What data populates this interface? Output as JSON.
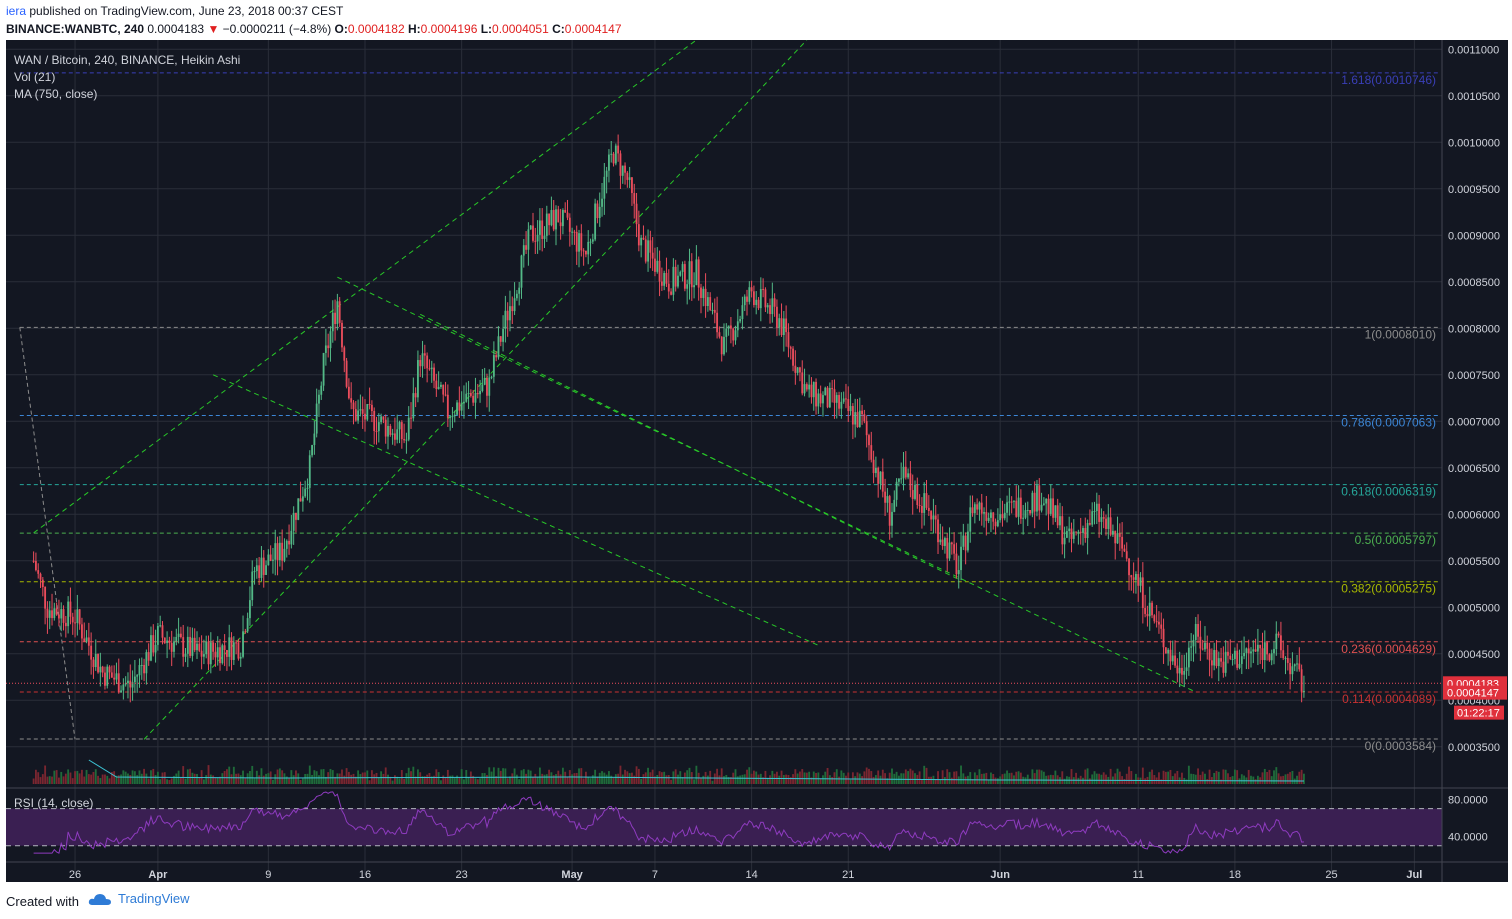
{
  "header": {
    "author": "iera",
    "published": "published on TradingView.com, June 23, 2018 00:37 CEST",
    "symbol_line": {
      "symbol": "BINANCE:WANBTC, 240",
      "last": "0.0004183",
      "change": "−0.0000211 (−4.8%)",
      "open_label": "O:",
      "open": "0.0004182",
      "high_label": "H:",
      "high": "0.0004196",
      "low_label": "L:",
      "low": "0.0004051",
      "close_label": "C:",
      "close": "0.0004147"
    }
  },
  "legend": {
    "title": "WAN / Bitcoin, 240, BINANCE, Heikin Ashi",
    "vol": "Vol (21)",
    "ma": "MA (750, close)",
    "rsi": "RSI (14, close)"
  },
  "colors": {
    "background": "#131722",
    "grid": "#2a2e39",
    "up": "#53b987",
    "down": "#eb4d5c",
    "trend": "#28c828",
    "rsi": "#8e3bbf",
    "rsi_band": "#3a1f52",
    "ma": "#3cc3d4"
  },
  "chart_data": {
    "type": "candlestick",
    "style": "Heikin Ashi",
    "interval": "240",
    "y_range": [
      0.00031,
      0.00111
    ],
    "x_range": [
      "2018-03-21",
      "2018-07-03"
    ],
    "x_tick_labels": [
      "26",
      "Apr",
      "9",
      "16",
      "23",
      "May",
      "7",
      "14",
      "21",
      "Jun",
      "11",
      "18",
      "25",
      "Jul"
    ],
    "x_tick_dates": [
      "2018-03-26",
      "2018-04-01",
      "2018-04-09",
      "2018-04-16",
      "2018-04-23",
      "2018-05-01",
      "2018-05-07",
      "2018-05-14",
      "2018-05-21",
      "2018-06-01",
      "2018-06-11",
      "2018-06-18",
      "2018-06-25",
      "2018-07-01"
    ],
    "y_tick_labels": [
      "0.0011000",
      "0.0010500",
      "0.0010000",
      "0.0009500",
      "0.0009000",
      "0.0008500",
      "0.0008000",
      "0.0007500",
      "0.0007000",
      "0.0006500",
      "0.0006000",
      "0.0005500",
      "0.0005000",
      "0.0004500",
      "0.0004000",
      "0.0003500"
    ],
    "price_path": [
      {
        "date": "2018-03-23",
        "price": 0.00055
      },
      {
        "date": "2018-03-24",
        "price": 0.0005
      },
      {
        "date": "2018-03-26",
        "price": 0.00049
      },
      {
        "date": "2018-03-28",
        "price": 0.00043
      },
      {
        "date": "2018-03-30",
        "price": 0.000415
      },
      {
        "date": "2018-04-01",
        "price": 0.00047
      },
      {
        "date": "2018-04-04",
        "price": 0.00045
      },
      {
        "date": "2018-04-07",
        "price": 0.00046
      },
      {
        "date": "2018-04-08",
        "price": 0.00054
      },
      {
        "date": "2018-04-10",
        "price": 0.00056
      },
      {
        "date": "2018-04-12",
        "price": 0.00065
      },
      {
        "date": "2018-04-13",
        "price": 0.00076
      },
      {
        "date": "2018-04-14",
        "price": 0.00083
      },
      {
        "date": "2018-04-15",
        "price": 0.00071
      },
      {
        "date": "2018-04-17",
        "price": 0.0007
      },
      {
        "date": "2018-04-19",
        "price": 0.00068
      },
      {
        "date": "2018-04-20",
        "price": 0.00077
      },
      {
        "date": "2018-04-22",
        "price": 0.00071
      },
      {
        "date": "2018-04-25",
        "price": 0.00074
      },
      {
        "date": "2018-04-26",
        "price": 0.0008
      },
      {
        "date": "2018-04-28",
        "price": 0.0009
      },
      {
        "date": "2018-04-30",
        "price": 0.00092
      },
      {
        "date": "2018-05-02",
        "price": 0.00088
      },
      {
        "date": "2018-05-03",
        "price": 0.00094
      },
      {
        "date": "2018-05-04",
        "price": 0.00099
      },
      {
        "date": "2018-05-05",
        "price": 0.00096
      },
      {
        "date": "2018-05-06",
        "price": 0.00089
      },
      {
        "date": "2018-05-08",
        "price": 0.00085
      },
      {
        "date": "2018-05-10",
        "price": 0.00086
      },
      {
        "date": "2018-05-12",
        "price": 0.00078
      },
      {
        "date": "2018-05-14",
        "price": 0.00084
      },
      {
        "date": "2018-05-16",
        "price": 0.00081
      },
      {
        "date": "2018-05-18",
        "price": 0.00073
      },
      {
        "date": "2018-05-20",
        "price": 0.00072
      },
      {
        "date": "2018-05-22",
        "price": 0.0007
      },
      {
        "date": "2018-05-24",
        "price": 0.0006
      },
      {
        "date": "2018-05-25",
        "price": 0.00064
      },
      {
        "date": "2018-05-27",
        "price": 0.0006
      },
      {
        "date": "2018-05-29",
        "price": 0.00054
      },
      {
        "date": "2018-05-30",
        "price": 0.00061
      },
      {
        "date": "2018-06-01",
        "price": 0.0006
      },
      {
        "date": "2018-06-04",
        "price": 0.00062
      },
      {
        "date": "2018-06-06",
        "price": 0.00057
      },
      {
        "date": "2018-06-08",
        "price": 0.0006
      },
      {
        "date": "2018-06-10",
        "price": 0.00056
      },
      {
        "date": "2018-06-12",
        "price": 0.00049
      },
      {
        "date": "2018-06-14",
        "price": 0.00043
      },
      {
        "date": "2018-06-15",
        "price": 0.00047
      },
      {
        "date": "2018-06-17",
        "price": 0.00044
      },
      {
        "date": "2018-06-19",
        "price": 0.00045
      },
      {
        "date": "2018-06-21",
        "price": 0.00046
      },
      {
        "date": "2018-06-23",
        "price": 0.000415
      }
    ],
    "fibonacci_levels": [
      {
        "label": "1.618(0.0010746)",
        "value": 0.0010746,
        "color": "#3a3fb8"
      },
      {
        "label": "1(0.0008010)",
        "value": 0.000801,
        "color": "#8c8c8c"
      },
      {
        "label": "0.786(0.0007063)",
        "value": 0.0007063,
        "color": "#3c86d6"
      },
      {
        "label": "0.618(0.0006319)",
        "value": 0.0006319,
        "color": "#26a69a"
      },
      {
        "label": "0.5(0.0005797)",
        "value": 0.0005797,
        "color": "#4caf50"
      },
      {
        "label": "0.382(0.0005275)",
        "value": 0.0005275,
        "color": "#a8b800"
      },
      {
        "label": "0.236(0.0004629)",
        "value": 0.0004629,
        "color": "#e05050"
      },
      {
        "label": "0.114(0.0004089)",
        "value": 0.0004089,
        "color": "#c83232"
      },
      {
        "label": "0(0.0003584)",
        "value": 0.0003584,
        "color": "#8c8c8c"
      }
    ],
    "price_tags": [
      {
        "label": "0.0004183",
        "value": 0.0004183
      },
      {
        "label": "0.0004147",
        "value": 0.0004147
      }
    ],
    "countdown": "01:22:17",
    "rsi": {
      "y_range": [
        20,
        90
      ],
      "levels": [
        70,
        30
      ],
      "tick_labels": [
        "80.0000",
        "40.0000"
      ],
      "tick_values": [
        80,
        40
      ]
    }
  },
  "footer": {
    "created": "Created with",
    "brand": "TradingView"
  }
}
